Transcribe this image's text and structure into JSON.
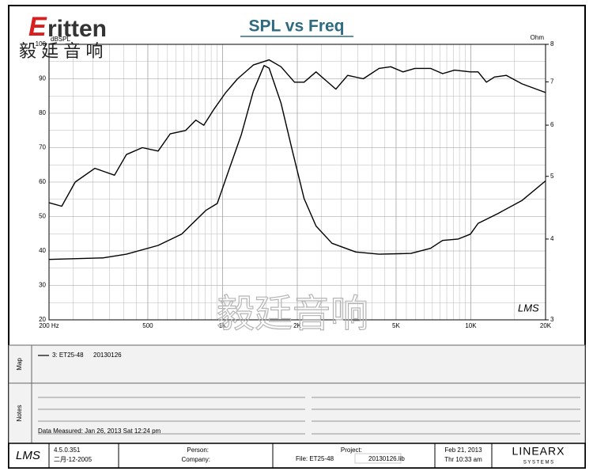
{
  "header": {
    "logo_mark": "E",
    "logo": "ritten",
    "logo_cn": "毅 廷 音 响"
  },
  "chart_data": {
    "type": "line",
    "title": "SPL vs Freq",
    "y_label": "dBSPL",
    "y2_label": "Ohm",
    "xlim": [
      200,
      20000
    ],
    "xscale": "log",
    "xticks": [
      {
        "value": 200,
        "label": "200 Hz"
      },
      500,
      {
        "value": 1000,
        "label": "1K"
      },
      {
        "value": 2000,
        "label": "2K"
      },
      {
        "value": 5000,
        "label": "5K"
      },
      {
        "value": 10000,
        "label": "10K"
      },
      {
        "value": 20000,
        "label": "20K"
      }
    ],
    "ylim": [
      20,
      100
    ],
    "yticks": [
      20,
      30,
      40,
      50,
      60,
      70,
      80,
      90,
      100
    ],
    "y2lim": [
      3,
      8
    ],
    "y2scale": "log",
    "y2ticks": [
      3,
      4,
      5,
      6,
      7,
      8
    ],
    "grid": true,
    "series": [
      {
        "name": "3: ET25-48",
        "note": "20130126",
        "color": "#000000",
        "x": [
          200,
          225,
          255,
          306,
          367,
          410,
          475,
          550,
          615,
          710,
          780,
          840,
          920,
          1030,
          1150,
          1330,
          1540,
          1720,
          1950,
          2130,
          2380,
          2560,
          2860,
          3190,
          3690,
          4270,
          4760,
          5330,
          5950,
          6880,
          7700,
          8600,
          9960,
          10700,
          11560,
          12440,
          13900,
          16100,
          20000
        ],
        "values": [
          54,
          53,
          60,
          64,
          62,
          68,
          70,
          69,
          74,
          75,
          78,
          76.5,
          81,
          86,
          90,
          94,
          95.5,
          93.5,
          89,
          89,
          92,
          90,
          87,
          91,
          90,
          93,
          93.5,
          92,
          93,
          93,
          91.5,
          92.5,
          92,
          92,
          89,
          90.5,
          91,
          88.5,
          86
        ]
      },
      {
        "color": "#000000",
        "axis": "y2",
        "x": [
          200,
          329,
          410,
          550,
          684,
          857,
          952,
          1060,
          1190,
          1330,
          1470,
          1540,
          1720,
          1910,
          2130,
          2380,
          2760,
          3440,
          4270,
          5740,
          6880,
          7700,
          8900,
          9960,
          10700,
          12860,
          16100,
          20000
        ],
        "values": [
          3.72,
          3.74,
          3.79,
          3.91,
          4.07,
          4.43,
          4.54,
          5.11,
          5.8,
          6.77,
          7.42,
          7.35,
          6.49,
          5.48,
          4.62,
          4.19,
          3.94,
          3.82,
          3.79,
          3.8,
          3.87,
          3.98,
          4.0,
          4.07,
          4.23,
          4.38,
          4.59,
          4.92
        ]
      }
    ]
  },
  "watermark": "毅廷音响",
  "plot_logo": "LMS",
  "map": {
    "label": "Map"
  },
  "notes": {
    "label": "Notes",
    "measured": "Data Measured: Jan 26, 2013  Sat 12:24 pm"
  },
  "footer": {
    "logo": "LMS",
    "version": "4.5.0.351",
    "build_date": "二月-12-2005",
    "person": "Person:",
    "company": "Company:",
    "project": "Project:",
    "file": "File: ET25-48",
    "file_suffix": "20130126.lib",
    "date": "Feb 21, 2013",
    "time": "Thr 10:33 am",
    "brand": "LINEARX",
    "brand_sub": "S Y S T E M S"
  }
}
